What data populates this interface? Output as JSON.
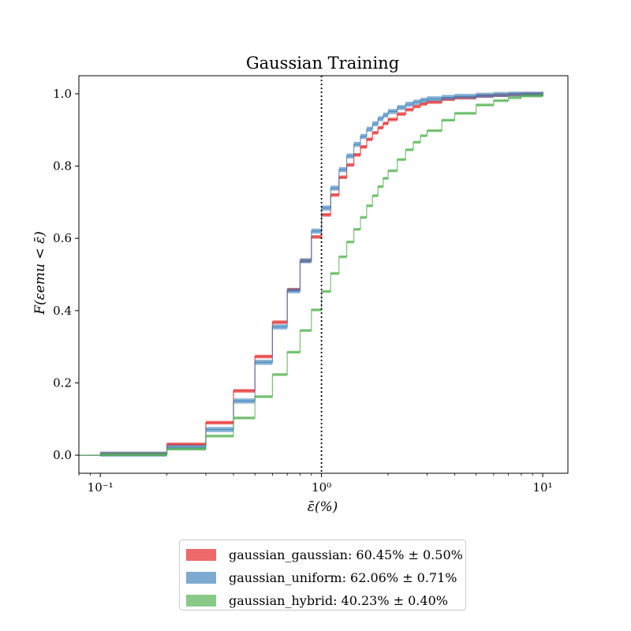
{
  "chart_data": {
    "type": "line",
    "step": true,
    "title": "Gaussian Training",
    "xlabel": "ε̄(%)",
    "ylabel": "F(εemu < ε̄)",
    "xscale": "log",
    "xlim": [
      0.08,
      13
    ],
    "ylim": [
      -0.05,
      1.05
    ],
    "xticks": [
      0.1,
      1,
      10
    ],
    "xtick_labels": [
      "10⁻¹",
      "10⁰",
      "10¹"
    ],
    "yticks": [
      0.0,
      0.2,
      0.4,
      0.6,
      0.8,
      1.0
    ],
    "ytick_labels": [
      "0.0",
      "0.2",
      "0.4",
      "0.6",
      "0.8",
      "1.0"
    ],
    "grid": false,
    "legend_position": "below",
    "vline": {
      "x": 1.0,
      "style": "dotted"
    },
    "series": [
      {
        "name": "gaussian_gaussian: 60.45% ± 0.50%",
        "color": "#e41a1c",
        "x": [
          0.1,
          0.2,
          0.3,
          0.4,
          0.5,
          0.6,
          0.7,
          0.8,
          0.9,
          1.0,
          1.1,
          1.2,
          1.3,
          1.4,
          1.5,
          1.6,
          1.7,
          1.8,
          1.9,
          2.0,
          2.2,
          2.4,
          2.6,
          2.8,
          3.0,
          3.5,
          4.0,
          5.0,
          6.0,
          7.0,
          8.0,
          10.0
        ],
        "y": [
          0.004,
          0.03,
          0.09,
          0.178,
          0.273,
          0.368,
          0.458,
          0.538,
          0.604,
          0.665,
          0.72,
          0.769,
          0.803,
          0.831,
          0.853,
          0.874,
          0.892,
          0.906,
          0.918,
          0.929,
          0.944,
          0.956,
          0.965,
          0.972,
          0.977,
          0.985,
          0.989,
          0.994,
          0.996,
          0.998,
          0.999,
          1.0
        ],
        "band": 0.005
      },
      {
        "name": "gaussian_uniform: 62.06% ± 0.71%",
        "color": "#377eb8",
        "x": [
          0.1,
          0.2,
          0.3,
          0.4,
          0.5,
          0.6,
          0.7,
          0.8,
          0.9,
          1.0,
          1.1,
          1.2,
          1.3,
          1.4,
          1.5,
          1.6,
          1.7,
          1.8,
          1.9,
          2.0,
          2.2,
          2.4,
          2.6,
          2.8,
          3.0,
          3.5,
          4.0,
          5.0,
          6.0,
          7.0,
          8.0,
          10.0
        ],
        "y": [
          0.003,
          0.022,
          0.071,
          0.15,
          0.257,
          0.355,
          0.455,
          0.538,
          0.62,
          0.684,
          0.739,
          0.79,
          0.828,
          0.86,
          0.882,
          0.902,
          0.917,
          0.931,
          0.941,
          0.951,
          0.962,
          0.971,
          0.977,
          0.982,
          0.986,
          0.99,
          0.993,
          0.996,
          0.998,
          0.999,
          0.999,
          1.0
        ],
        "band": 0.007
      },
      {
        "name": "gaussian_hybrid: 40.23% ± 0.40%",
        "color": "#4daf4a",
        "x": [
          0.1,
          0.2,
          0.3,
          0.4,
          0.5,
          0.6,
          0.7,
          0.8,
          0.9,
          1.0,
          1.1,
          1.2,
          1.3,
          1.4,
          1.5,
          1.6,
          1.7,
          1.8,
          1.9,
          2.0,
          2.2,
          2.4,
          2.6,
          2.8,
          3.0,
          3.5,
          4.0,
          5.0,
          6.0,
          7.0,
          8.0,
          10.0
        ],
        "y": [
          0.002,
          0.017,
          0.053,
          0.103,
          0.162,
          0.223,
          0.285,
          0.345,
          0.402,
          0.453,
          0.503,
          0.549,
          0.59,
          0.625,
          0.658,
          0.69,
          0.718,
          0.743,
          0.766,
          0.787,
          0.818,
          0.845,
          0.866,
          0.884,
          0.898,
          0.927,
          0.946,
          0.969,
          0.981,
          0.989,
          0.994,
          1.0
        ],
        "band": 0.004
      }
    ]
  }
}
